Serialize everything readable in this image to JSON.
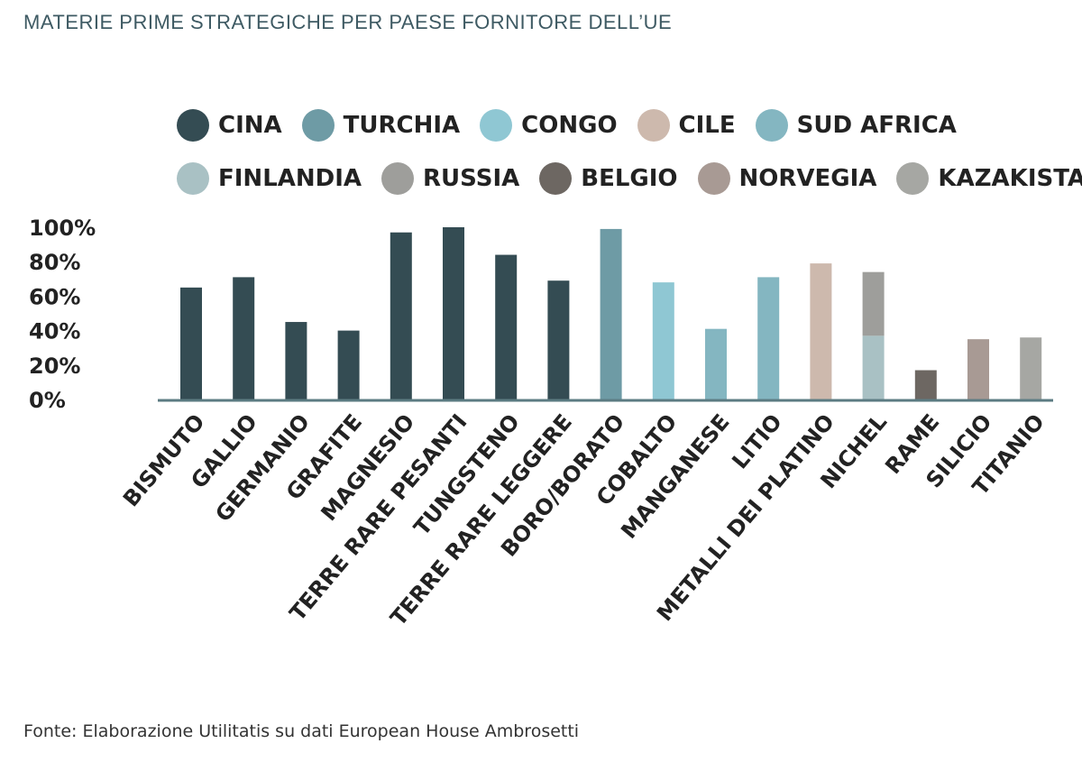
{
  "title": "MATERIE PRIME STRATEGICHE PER PAESE FORNITORE DELL’UE",
  "source": "Fonte: Elaborazione Utilitatis su dati European House Ambrosetti",
  "legend": [
    {
      "label": "CINA",
      "color": "#344c53"
    },
    {
      "label": "TURCHIA",
      "color": "#6e9ba5"
    },
    {
      "label": "CONGO",
      "color": "#8fc7d3"
    },
    {
      "label": "CILE",
      "color": "#cdb9ad"
    },
    {
      "label": "SUD AFRICA",
      "color": "#84b6c1"
    },
    {
      "label": "FINLANDIA",
      "color": "#a9c1c4"
    },
    {
      "label": "RUSSIA",
      "color": "#9e9e9b"
    },
    {
      "label": "BELGIO",
      "color": "#6d6762"
    },
    {
      "label": "NORVEGIA",
      "color": "#a89a94"
    },
    {
      "label": "KAZAKISTAN",
      "color": "#a6a7a3"
    }
  ],
  "chart_data": {
    "type": "bar",
    "stacked": true,
    "ylim": [
      0,
      100
    ],
    "yticks": [
      "100%",
      "80%",
      "60%",
      "40%",
      "20%",
      "0%"
    ],
    "categories": [
      "BISMUTO",
      "GALLIO",
      "GERMANIO",
      "GRAFITE",
      "MAGNESIO",
      "TERRE RARE PESANTI",
      "TUNGSTENO",
      "TERRE RARE LEGGERE",
      "BORO/BORATO",
      "COBALTO",
      "MANGANESE",
      "LITIO",
      "METALLI DEI PLATINO",
      "NICHEL",
      "RAME",
      "SILICIO",
      "TITANIO"
    ],
    "series": [
      {
        "name": "CINA",
        "values": [
          65,
          71,
          45,
          40,
          97,
          100,
          84,
          69,
          0,
          0,
          0,
          0,
          0,
          0,
          0,
          0,
          0
        ]
      },
      {
        "name": "TURCHIA",
        "values": [
          0,
          0,
          0,
          0,
          0,
          0,
          0,
          0,
          99,
          0,
          0,
          0,
          0,
          0,
          0,
          0,
          0
        ]
      },
      {
        "name": "CONGO",
        "values": [
          0,
          0,
          0,
          0,
          0,
          0,
          0,
          0,
          0,
          68,
          0,
          0,
          0,
          0,
          0,
          0,
          0
        ]
      },
      {
        "name": "CILE",
        "values": [
          0,
          0,
          0,
          0,
          0,
          0,
          0,
          0,
          0,
          0,
          0,
          0,
          79,
          0,
          0,
          0,
          0
        ]
      },
      {
        "name": "SUD AFRICA",
        "values": [
          0,
          0,
          0,
          0,
          0,
          0,
          0,
          0,
          0,
          0,
          41,
          71,
          0,
          0,
          0,
          0,
          0
        ]
      },
      {
        "name": "FINLANDIA",
        "values": [
          0,
          0,
          0,
          0,
          0,
          0,
          0,
          0,
          0,
          0,
          0,
          0,
          0,
          37,
          0,
          0,
          0
        ]
      },
      {
        "name": "RUSSIA",
        "values": [
          0,
          0,
          0,
          0,
          0,
          0,
          0,
          0,
          0,
          0,
          0,
          0,
          0,
          37,
          0,
          0,
          0
        ]
      },
      {
        "name": "BELGIO",
        "values": [
          0,
          0,
          0,
          0,
          0,
          0,
          0,
          0,
          0,
          0,
          0,
          0,
          0,
          0,
          17,
          0,
          0
        ]
      },
      {
        "name": "NORVEGIA",
        "values": [
          0,
          0,
          0,
          0,
          0,
          0,
          0,
          0,
          0,
          0,
          0,
          0,
          0,
          0,
          0,
          35,
          0
        ]
      },
      {
        "name": "KAZAKISTAN",
        "values": [
          0,
          0,
          0,
          0,
          0,
          0,
          0,
          0,
          0,
          0,
          0,
          0,
          0,
          0,
          0,
          0,
          36
        ]
      }
    ],
    "axis_color": "#5b7b82",
    "grid": false,
    "legend_position": "top"
  }
}
